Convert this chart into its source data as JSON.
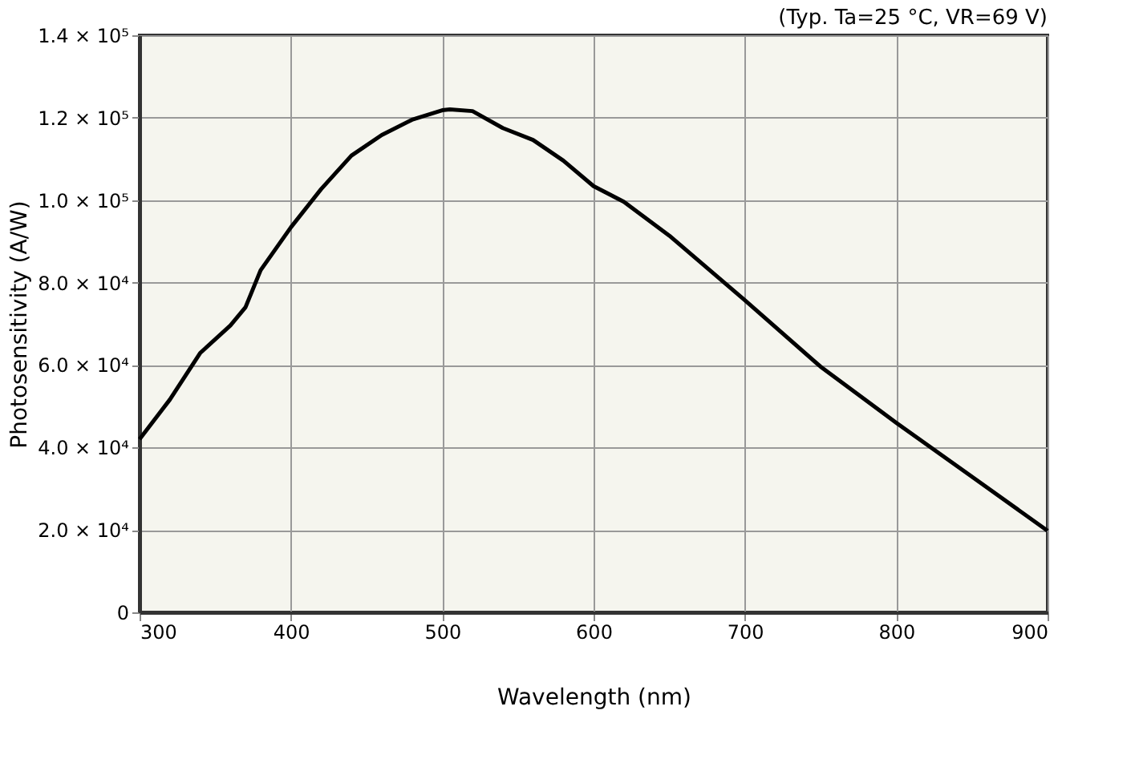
{
  "chart_data": {
    "type": "line",
    "annotations": [
      "(Typ. Ta=25 °C, VR=69 V)"
    ],
    "xlabel": "Wavelength (nm)",
    "ylabel": "Photosensitivity (A/W)",
    "series": [
      {
        "color": "#000000",
        "x": [
          300,
          320,
          340,
          360,
          370,
          380,
          400,
          420,
          440,
          460,
          480,
          500,
          505,
          520,
          540,
          560,
          580,
          600,
          620,
          650,
          700,
          750,
          800,
          850,
          900
        ],
        "values": [
          42000,
          51600,
          62900,
          69600,
          74000,
          83000,
          93400,
          102700,
          110800,
          115800,
          119500,
          121800,
          122000,
          121600,
          117500,
          114600,
          109600,
          103400,
          99600,
          91400,
          75700,
          59600,
          46000,
          32900,
          19800
        ]
      }
    ],
    "xlim": [
      300,
      900
    ],
    "xticks": [
      300,
      400,
      500,
      600,
      700,
      800,
      900
    ],
    "ylim": [
      0,
      140000
    ],
    "yticks": [
      0,
      {
        "value": 20000,
        "label": "2.0 × 10⁴"
      },
      {
        "value": 40000,
        "label": "4.0 × 10⁴"
      },
      {
        "value": 60000,
        "label": "6.0 × 10⁴"
      },
      {
        "value": 80000,
        "label": "8.0 × 10⁴"
      },
      {
        "value": 100000,
        "label": "1.0 × 10⁵"
      },
      {
        "value": 120000,
        "label": "1.2 × 10⁵"
      },
      {
        "value": 140000,
        "label": "1.4 × 10⁵"
      }
    ],
    "grid": true,
    "marker": "none",
    "line_style": "solid"
  }
}
